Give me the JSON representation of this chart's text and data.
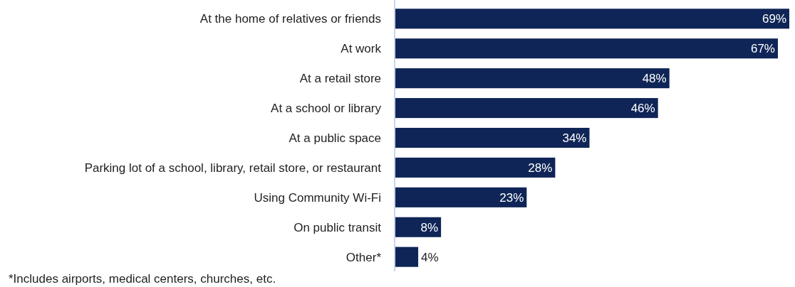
{
  "chart_data": {
    "type": "bar",
    "orientation": "horizontal",
    "categories": [
      "At the home of relatives or friends",
      "At work",
      "At a retail store",
      "At a school or library",
      "At a public space",
      "Parking lot of a school, library, retail store, or restaurant",
      "Using Community Wi-Fi",
      "On public transit",
      "Other*"
    ],
    "values": [
      69,
      67,
      48,
      46,
      34,
      28,
      23,
      8,
      4
    ],
    "value_labels": [
      "69%",
      "67%",
      "48%",
      "46%",
      "34%",
      "28%",
      "23%",
      "8%",
      "4%"
    ],
    "color": "#0f2557",
    "annotations": [
      "*Includes airports, medical centers, churches, etc."
    ]
  }
}
